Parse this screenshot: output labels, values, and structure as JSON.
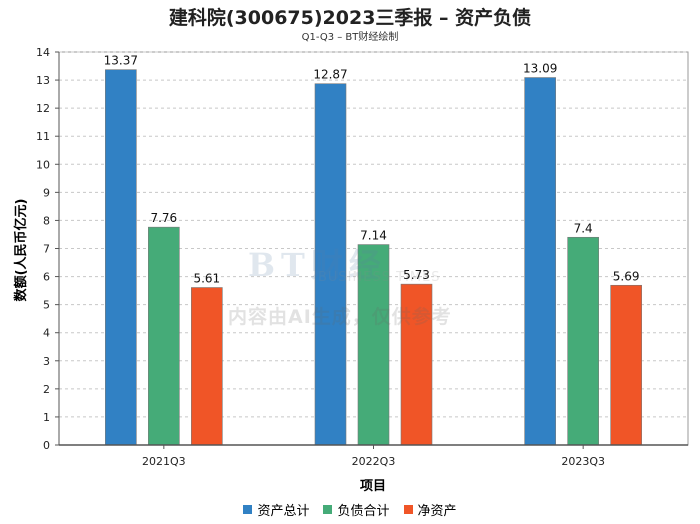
{
  "title": "建科院(300675)2023三季报 – 资产负债",
  "subtitle": "Q1-Q3 – BT财经绘制",
  "watermark": {
    "brand": "BT财经",
    "business": "BUSINESS TIMES",
    "note": "内容由AI生成，仅供参考"
  },
  "chart_data": {
    "type": "bar",
    "xlabel": "项目",
    "ylabel": "数额(人民币亿元)",
    "ylim": [
      0,
      14
    ],
    "yticks": [
      0,
      1,
      2,
      3,
      4,
      5,
      6,
      7,
      8,
      9,
      10,
      11,
      12,
      13,
      14
    ],
    "grid": true,
    "legend_position": "bottom",
    "categories": [
      "2021Q3",
      "2022Q3",
      "2023Q3"
    ],
    "series": [
      {
        "name": "资产总计",
        "color": "#3181c4",
        "values": [
          13.37,
          12.87,
          13.09
        ],
        "labels": [
          "13.37",
          "12.87",
          "13.09"
        ]
      },
      {
        "name": "负债合计",
        "color": "#45ab78",
        "values": [
          7.76,
          7.14,
          7.4
        ],
        "labels": [
          "7.76",
          "7.14",
          "7.4"
        ]
      },
      {
        "name": "净资产",
        "color": "#f05527",
        "values": [
          5.61,
          5.73,
          5.69
        ],
        "labels": [
          "5.61",
          "5.73",
          "5.69"
        ]
      }
    ]
  }
}
